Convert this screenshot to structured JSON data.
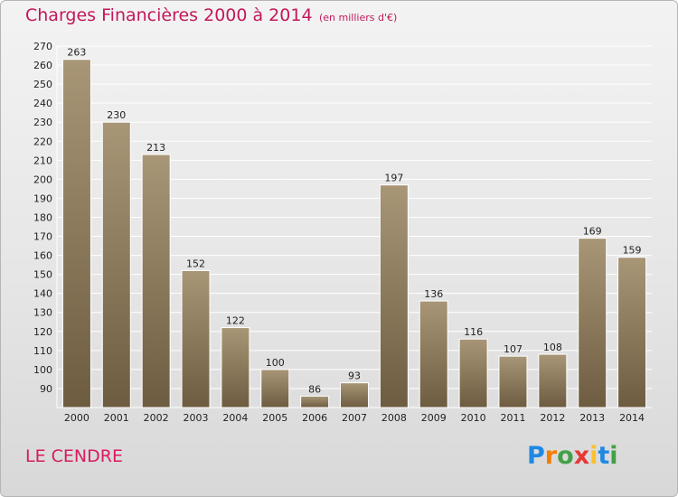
{
  "title": "Charges Financières 2000 à 2014",
  "subtitle": "(en milliers d'€)",
  "commune": "LE CENDRE",
  "brand": {
    "letters": [
      "P",
      "r",
      "o",
      "x",
      "i",
      "t",
      "i"
    ],
    "colors": [
      "#1e88e5",
      "#f57c00",
      "#43a047",
      "#e53935",
      "#fbc02d",
      "#1e88e5",
      "#43a047"
    ]
  },
  "colors": {
    "bar_top": "#a89677",
    "bar_bottom": "#6d5c40",
    "grid": "#ffffff",
    "title": "#c2185b"
  },
  "chart_data": {
    "type": "bar",
    "title": "Charges Financières 2000 à 2014",
    "subtitle": "(en milliers d'€)",
    "categories": [
      "2000",
      "2001",
      "2002",
      "2003",
      "2004",
      "2005",
      "2006",
      "2007",
      "2008",
      "2009",
      "2010",
      "2011",
      "2012",
      "2013",
      "2014"
    ],
    "values": [
      263,
      230,
      213,
      152,
      122,
      100,
      86,
      93,
      197,
      136,
      116,
      107,
      108,
      169,
      159
    ],
    "ylim": [
      80,
      270
    ],
    "ytick_step": 10,
    "grid": true
  }
}
